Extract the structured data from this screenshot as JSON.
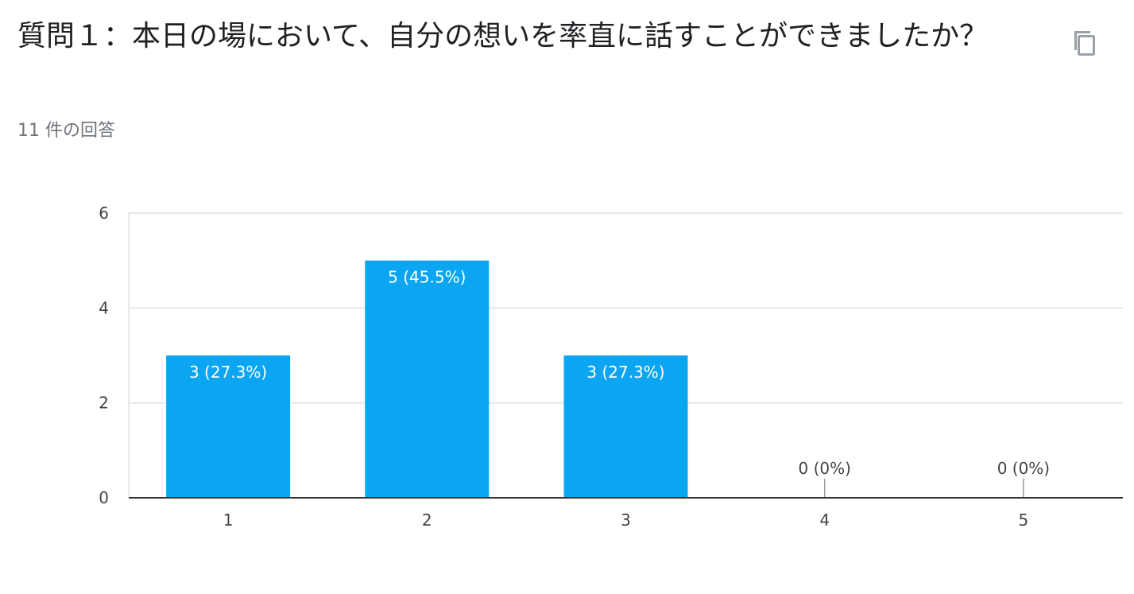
{
  "question": {
    "title": "質問１：本日の場において、自分の想いを率直に話すことができましたか？",
    "response_count": "11 件の回答"
  },
  "copy_icon": "copy-icon",
  "colors": {
    "bar": "#0ba5f2",
    "gridline": "#e8e8e8",
    "axis": "#333333"
  },
  "chart_data": {
    "type": "bar",
    "categories": [
      "1",
      "2",
      "3",
      "4",
      "5"
    ],
    "values": [
      3,
      5,
      3,
      0,
      0
    ],
    "data_labels": [
      "3 (27.3%)",
      "5 (45.5%)",
      "3 (27.3%)",
      "0 (0%)",
      "0 (0%)"
    ],
    "ylim": [
      0,
      6
    ],
    "yticks": [
      0,
      2,
      4,
      6
    ],
    "grid": true,
    "legend": "none",
    "xlabel": "",
    "ylabel": ""
  }
}
